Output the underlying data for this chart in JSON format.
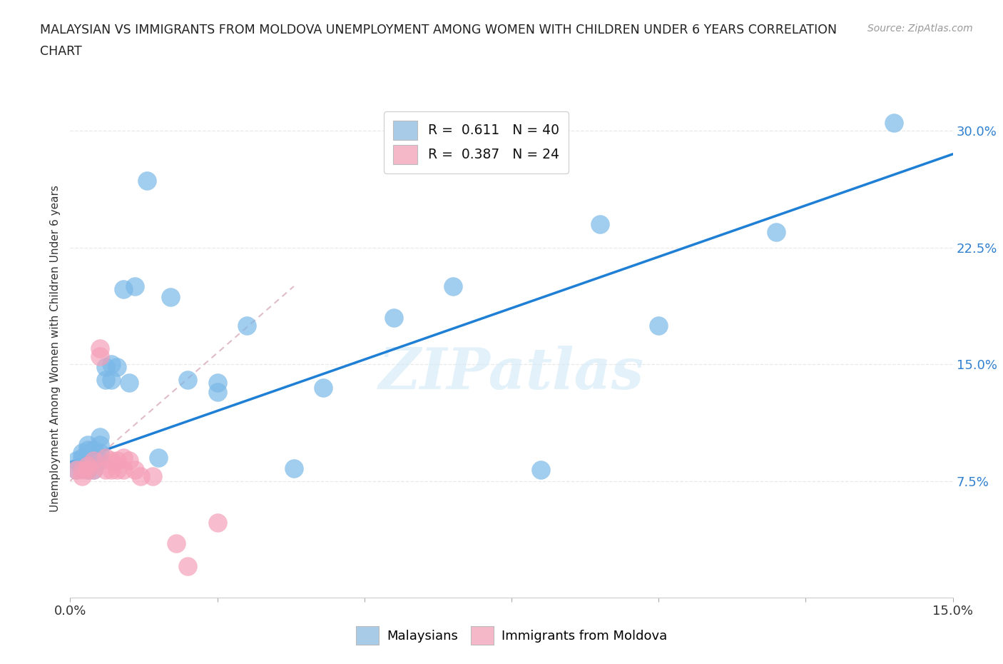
{
  "title_line1": "MALAYSIAN VS IMMIGRANTS FROM MOLDOVA UNEMPLOYMENT AMONG WOMEN WITH CHILDREN UNDER 6 YEARS CORRELATION",
  "title_line2": "CHART",
  "source": "Source: ZipAtlas.com",
  "ylabel": "Unemployment Among Women with Children Under 6 years",
  "xlim": [
    0,
    0.15
  ],
  "ylim": [
    0,
    0.32
  ],
  "xticks": [
    0.0,
    0.025,
    0.05,
    0.075,
    0.1,
    0.125,
    0.15
  ],
  "xticklabels": [
    "0.0%",
    "",
    "",
    "",
    "",
    "",
    "15.0%"
  ],
  "ytick_positions": [
    0.075,
    0.15,
    0.225,
    0.3
  ],
  "ytick_labels": [
    "7.5%",
    "15.0%",
    "22.5%",
    "30.0%"
  ],
  "legend_r1": "R =  0.611   N = 40",
  "legend_r2": "R =  0.387   N = 24",
  "watermark": "ZIPatlas",
  "malaysian_x": [
    0.001,
    0.001,
    0.002,
    0.002,
    0.002,
    0.003,
    0.003,
    0.003,
    0.003,
    0.004,
    0.004,
    0.004,
    0.005,
    0.005,
    0.005,
    0.005,
    0.006,
    0.006,
    0.007,
    0.007,
    0.008,
    0.009,
    0.01,
    0.011,
    0.013,
    0.015,
    0.017,
    0.02,
    0.025,
    0.03,
    0.038,
    0.043,
    0.055,
    0.065,
    0.08,
    0.09,
    0.1,
    0.025,
    0.12,
    0.14
  ],
  "malaysian_y": [
    0.082,
    0.088,
    0.083,
    0.09,
    0.093,
    0.082,
    0.088,
    0.095,
    0.098,
    0.082,
    0.09,
    0.095,
    0.088,
    0.093,
    0.098,
    0.103,
    0.14,
    0.148,
    0.14,
    0.15,
    0.148,
    0.198,
    0.138,
    0.2,
    0.268,
    0.09,
    0.193,
    0.14,
    0.138,
    0.175,
    0.083,
    0.135,
    0.18,
    0.2,
    0.082,
    0.24,
    0.175,
    0.132,
    0.235,
    0.305
  ],
  "moldovan_x": [
    0.001,
    0.002,
    0.002,
    0.003,
    0.003,
    0.004,
    0.004,
    0.005,
    0.005,
    0.006,
    0.006,
    0.007,
    0.007,
    0.008,
    0.008,
    0.009,
    0.009,
    0.01,
    0.011,
    0.012,
    0.014,
    0.018,
    0.02,
    0.025
  ],
  "moldovan_y": [
    0.082,
    0.078,
    0.082,
    0.082,
    0.085,
    0.082,
    0.088,
    0.155,
    0.16,
    0.082,
    0.09,
    0.082,
    0.088,
    0.082,
    0.088,
    0.082,
    0.09,
    0.088,
    0.082,
    0.078,
    0.078,
    0.035,
    0.02,
    0.048
  ],
  "blue_scatter_color": "#7ab8e8",
  "pink_scatter_color": "#f5a0b8",
  "blue_line_color": "#1e7fd4",
  "pink_line_color": "#e06080",
  "grid_color": "#e8e8e8",
  "background_color": "#ffffff",
  "blue_legend_color": "#a8cce8",
  "pink_legend_color": "#f5b8c8",
  "right_tick_color": "#3080d0"
}
